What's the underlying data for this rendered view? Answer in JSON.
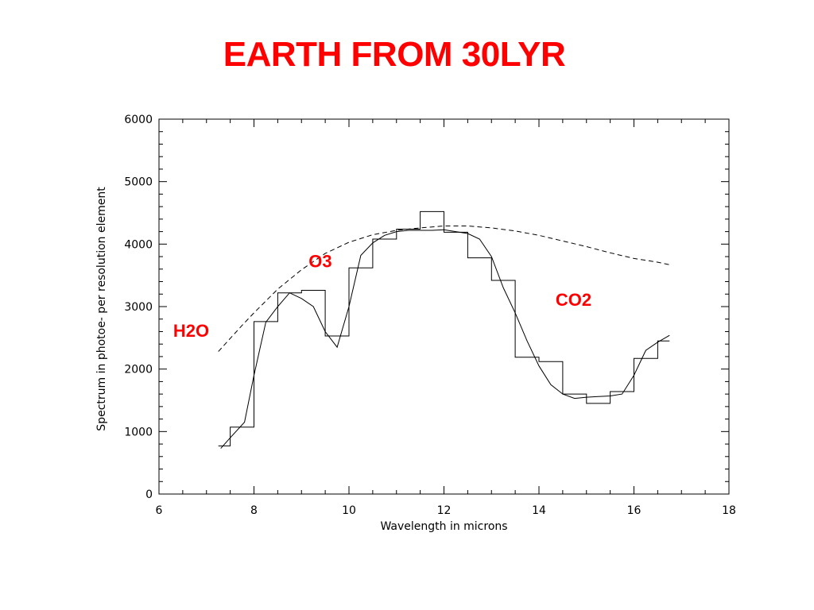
{
  "slide": {
    "title": "EARTH FROM 30LYR"
  },
  "colors": {
    "title": "#ff0000",
    "annotation": "#ff0000",
    "lines": "#000000"
  },
  "chart_data": {
    "type": "line",
    "xlabel": "Wavelength in microns",
    "ylabel": "Spectrum in photoe- per resolution element",
    "xlim": [
      6,
      18
    ],
    "ylim": [
      0,
      6000
    ],
    "xticks": [
      "6",
      "8",
      "10",
      "12",
      "14",
      "16",
      "18"
    ],
    "yticks": [
      "0",
      "1000",
      "2000",
      "3000",
      "4000",
      "5000",
      "6000"
    ],
    "grid": false,
    "legend": "none",
    "series": [
      {
        "style": "step",
        "x": [
          7.25,
          7.5,
          7.5,
          8.0,
          8.0,
          8.5,
          8.5,
          9.0,
          9.0,
          9.5,
          9.5,
          10.0,
          10.0,
          10.5,
          10.5,
          11.0,
          11.0,
          11.5,
          11.5,
          12.0,
          12.0,
          12.5,
          12.5,
          13.0,
          13.0,
          13.5,
          13.5,
          14.0,
          14.0,
          14.5,
          14.5,
          15.0,
          15.0,
          15.5,
          15.5,
          16.0,
          16.0,
          16.5,
          16.5,
          16.75
        ],
        "y": [
          770,
          770,
          1070,
          1070,
          2760,
          2760,
          3220,
          3220,
          3260,
          3260,
          2530,
          2530,
          3620,
          3620,
          4080,
          4080,
          4240,
          4240,
          4520,
          4520,
          4190,
          4190,
          3780,
          3780,
          3420,
          3420,
          2190,
          2190,
          2120,
          2120,
          1600,
          1600,
          1450,
          1450,
          1640,
          1640,
          2170,
          2170,
          2450,
          2450
        ]
      },
      {
        "style": "solid",
        "x": [
          7.3,
          7.5,
          7.8,
          8.0,
          8.25,
          8.5,
          8.75,
          9.0,
          9.25,
          9.5,
          9.75,
          10.0,
          10.25,
          10.5,
          10.75,
          11.0,
          11.25,
          11.5,
          11.75,
          12.0,
          12.25,
          12.5,
          12.75,
          13.0,
          13.25,
          13.5,
          13.75,
          14.0,
          14.25,
          14.5,
          14.75,
          15.0,
          15.25,
          15.5,
          15.75,
          16.0,
          16.25,
          16.5,
          16.75
        ],
        "y": [
          730,
          900,
          1150,
          1900,
          2750,
          3000,
          3220,
          3130,
          3000,
          2600,
          2350,
          3000,
          3820,
          4020,
          4140,
          4200,
          4220,
          4220,
          4220,
          4230,
          4200,
          4170,
          4080,
          3800,
          3300,
          2900,
          2450,
          2050,
          1750,
          1600,
          1530,
          1550,
          1560,
          1570,
          1600,
          1900,
          2300,
          2430,
          2540
        ]
      },
      {
        "style": "dashed",
        "x": [
          7.25,
          7.5,
          7.75,
          8.0,
          8.5,
          9.0,
          9.5,
          10.0,
          10.5,
          11.0,
          11.5,
          12.0,
          12.5,
          13.0,
          13.5,
          14.0,
          14.5,
          15.0,
          15.5,
          16.0,
          16.5,
          16.75
        ],
        "y": [
          2280,
          2490,
          2700,
          2900,
          3280,
          3590,
          3850,
          4030,
          4150,
          4220,
          4260,
          4290,
          4290,
          4260,
          4210,
          4140,
          4050,
          3960,
          3860,
          3770,
          3710,
          3670
        ]
      }
    ],
    "annotations": [
      {
        "text": "H2O",
        "x": 6.3,
        "y": 2520
      },
      {
        "text": "O3",
        "x": 9.15,
        "y": 3630
      },
      {
        "text": "CO2",
        "x": 14.35,
        "y": 3010
      }
    ]
  }
}
